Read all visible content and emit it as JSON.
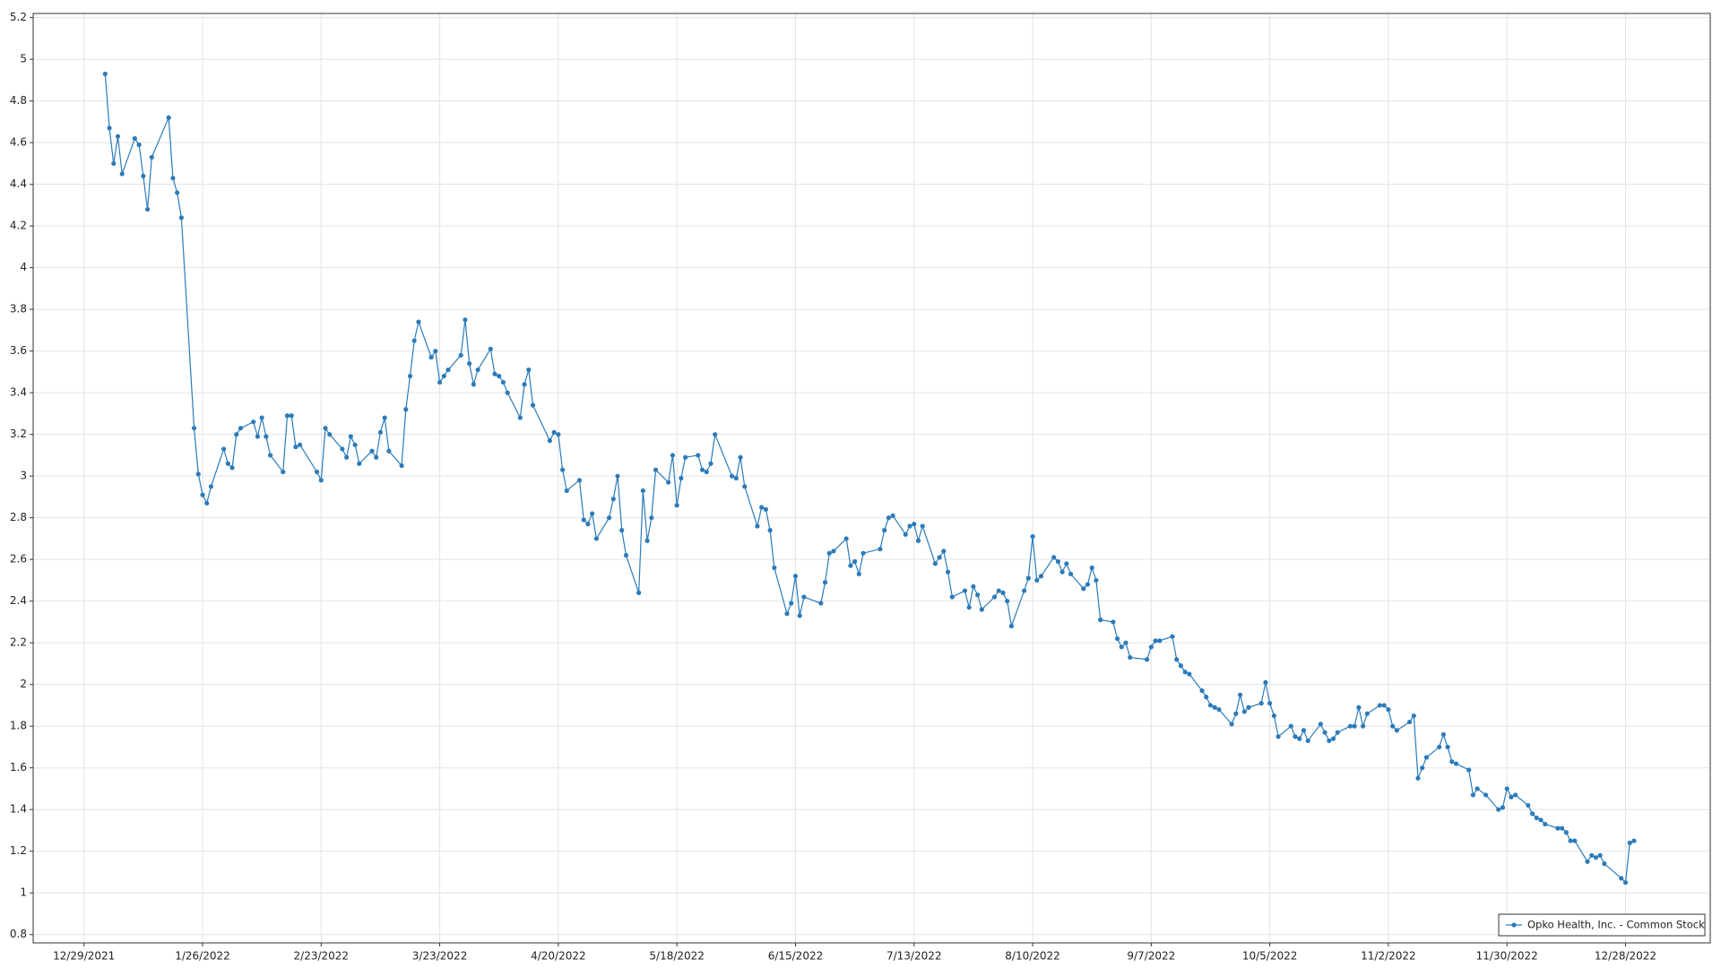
{
  "chart_data": {
    "type": "line",
    "x": [
      "2022-01-03",
      "2022-01-04",
      "2022-01-05",
      "2022-01-06",
      "2022-01-07",
      "2022-01-10",
      "2022-01-11",
      "2022-01-12",
      "2022-01-13",
      "2022-01-14",
      "2022-01-18",
      "2022-01-19",
      "2022-01-20",
      "2022-01-21",
      "2022-01-24",
      "2022-01-25",
      "2022-01-26",
      "2022-01-27",
      "2022-01-28",
      "2022-01-31",
      "2022-02-01",
      "2022-02-02",
      "2022-02-03",
      "2022-02-04",
      "2022-02-07",
      "2022-02-08",
      "2022-02-09",
      "2022-02-10",
      "2022-02-11",
      "2022-02-14",
      "2022-02-15",
      "2022-02-16",
      "2022-02-17",
      "2022-02-18",
      "2022-02-22",
      "2022-02-23",
      "2022-02-24",
      "2022-02-25",
      "2022-02-28",
      "2022-03-01",
      "2022-03-02",
      "2022-03-03",
      "2022-03-04",
      "2022-03-07",
      "2022-03-08",
      "2022-03-09",
      "2022-03-10",
      "2022-03-11",
      "2022-03-14",
      "2022-03-15",
      "2022-03-16",
      "2022-03-17",
      "2022-03-18",
      "2022-03-21",
      "2022-03-22",
      "2022-03-23",
      "2022-03-24",
      "2022-03-25",
      "2022-03-28",
      "2022-03-29",
      "2022-03-30",
      "2022-03-31",
      "2022-04-01",
      "2022-04-04",
      "2022-04-05",
      "2022-04-06",
      "2022-04-07",
      "2022-04-08",
      "2022-04-11",
      "2022-04-12",
      "2022-04-13",
      "2022-04-14",
      "2022-04-18",
      "2022-04-19",
      "2022-04-20",
      "2022-04-21",
      "2022-04-22",
      "2022-04-25",
      "2022-04-26",
      "2022-04-27",
      "2022-04-28",
      "2022-04-29",
      "2022-05-02",
      "2022-05-03",
      "2022-05-04",
      "2022-05-05",
      "2022-05-06",
      "2022-05-09",
      "2022-05-10",
      "2022-05-11",
      "2022-05-12",
      "2022-05-13",
      "2022-05-16",
      "2022-05-17",
      "2022-05-18",
      "2022-05-19",
      "2022-05-20",
      "2022-05-23",
      "2022-05-24",
      "2022-05-25",
      "2022-05-26",
      "2022-05-27",
      "2022-05-31",
      "2022-06-01",
      "2022-06-02",
      "2022-06-03",
      "2022-06-06",
      "2022-06-07",
      "2022-06-08",
      "2022-06-09",
      "2022-06-10",
      "2022-06-13",
      "2022-06-14",
      "2022-06-15",
      "2022-06-16",
      "2022-06-17",
      "2022-06-21",
      "2022-06-22",
      "2022-06-23",
      "2022-06-24",
      "2022-06-27",
      "2022-06-28",
      "2022-06-29",
      "2022-06-30",
      "2022-07-01",
      "2022-07-05",
      "2022-07-06",
      "2022-07-07",
      "2022-07-08",
      "2022-07-11",
      "2022-07-12",
      "2022-07-13",
      "2022-07-14",
      "2022-07-15",
      "2022-07-18",
      "2022-07-19",
      "2022-07-20",
      "2022-07-21",
      "2022-07-22",
      "2022-07-25",
      "2022-07-26",
      "2022-07-27",
      "2022-07-28",
      "2022-07-29",
      "2022-08-01",
      "2022-08-02",
      "2022-08-03",
      "2022-08-04",
      "2022-08-05",
      "2022-08-08",
      "2022-08-09",
      "2022-08-10",
      "2022-08-11",
      "2022-08-12",
      "2022-08-15",
      "2022-08-16",
      "2022-08-17",
      "2022-08-18",
      "2022-08-19",
      "2022-08-22",
      "2022-08-23",
      "2022-08-24",
      "2022-08-25",
      "2022-08-26",
      "2022-08-29",
      "2022-08-30",
      "2022-08-31",
      "2022-09-01",
      "2022-09-02",
      "2022-09-06",
      "2022-09-07",
      "2022-09-08",
      "2022-09-09",
      "2022-09-12",
      "2022-09-13",
      "2022-09-14",
      "2022-09-15",
      "2022-09-16",
      "2022-09-19",
      "2022-09-20",
      "2022-09-21",
      "2022-09-22",
      "2022-09-23",
      "2022-09-26",
      "2022-09-27",
      "2022-09-28",
      "2022-09-29",
      "2022-09-30",
      "2022-10-03",
      "2022-10-04",
      "2022-10-05",
      "2022-10-06",
      "2022-10-07",
      "2022-10-10",
      "2022-10-11",
      "2022-10-12",
      "2022-10-13",
      "2022-10-14",
      "2022-10-17",
      "2022-10-18",
      "2022-10-19",
      "2022-10-20",
      "2022-10-21",
      "2022-10-24",
      "2022-10-25",
      "2022-10-26",
      "2022-10-27",
      "2022-10-28",
      "2022-10-31",
      "2022-11-01",
      "2022-11-02",
      "2022-11-03",
      "2022-11-04",
      "2022-11-07",
      "2022-11-08",
      "2022-11-09",
      "2022-11-10",
      "2022-11-11",
      "2022-11-14",
      "2022-11-15",
      "2022-11-16",
      "2022-11-17",
      "2022-11-18",
      "2022-11-21",
      "2022-11-22",
      "2022-11-23",
      "2022-11-25",
      "2022-11-28",
      "2022-11-29",
      "2022-11-30",
      "2022-12-01",
      "2022-12-02",
      "2022-12-05",
      "2022-12-06",
      "2022-12-07",
      "2022-12-08",
      "2022-12-09",
      "2022-12-12",
      "2022-12-13",
      "2022-12-14",
      "2022-12-15",
      "2022-12-16",
      "2022-12-19",
      "2022-12-20",
      "2022-12-21",
      "2022-12-22",
      "2022-12-23",
      "2022-12-27",
      "2022-12-28",
      "2022-12-29",
      "2022-12-30"
    ],
    "series": [
      {
        "name": "Opko Health, Inc. - Common Stock",
        "color": "#2b7bba",
        "values": [
          4.93,
          4.67,
          4.5,
          4.63,
          4.45,
          4.62,
          4.59,
          4.44,
          4.28,
          4.53,
          4.72,
          4.43,
          4.36,
          4.24,
          3.23,
          3.01,
          2.91,
          2.87,
          2.95,
          3.13,
          3.06,
          3.04,
          3.2,
          3.23,
          3.26,
          3.19,
          3.28,
          3.19,
          3.1,
          3.02,
          3.29,
          3.29,
          3.14,
          3.15,
          3.02,
          2.98,
          3.23,
          3.2,
          3.13,
          3.09,
          3.19,
          3.15,
          3.06,
          3.12,
          3.09,
          3.21,
          3.28,
          3.12,
          3.05,
          3.32,
          3.48,
          3.65,
          3.74,
          3.57,
          3.6,
          3.45,
          3.48,
          3.51,
          3.58,
          3.75,
          3.54,
          3.44,
          3.51,
          3.61,
          3.49,
          3.48,
          3.45,
          3.4,
          3.28,
          3.44,
          3.51,
          3.34,
          3.17,
          3.21,
          3.2,
          3.03,
          2.93,
          2.98,
          2.79,
          2.77,
          2.82,
          2.7,
          2.8,
          2.89,
          3.0,
          2.74,
          2.62,
          2.44,
          2.93,
          2.69,
          2.8,
          3.03,
          2.97,
          3.1,
          2.86,
          2.99,
          3.09,
          3.1,
          3.03,
          3.02,
          3.06,
          3.2,
          3.0,
          2.99,
          3.09,
          2.95,
          2.76,
          2.85,
          2.84,
          2.74,
          2.56,
          2.34,
          2.39,
          2.52,
          2.33,
          2.42,
          2.39,
          2.49,
          2.63,
          2.64,
          2.7,
          2.57,
          2.59,
          2.53,
          2.63,
          2.65,
          2.74,
          2.8,
          2.81,
          2.72,
          2.76,
          2.77,
          2.69,
          2.76,
          2.58,
          2.61,
          2.64,
          2.54,
          2.42,
          2.45,
          2.37,
          2.47,
          2.43,
          2.36,
          2.42,
          2.45,
          2.44,
          2.4,
          2.28,
          2.45,
          2.51,
          2.71,
          2.5,
          2.52,
          2.61,
          2.59,
          2.54,
          2.58,
          2.53,
          2.46,
          2.48,
          2.56,
          2.5,
          2.31,
          2.3,
          2.22,
          2.18,
          2.2,
          2.13,
          2.12,
          2.18,
          2.21,
          2.21,
          2.23,
          2.12,
          2.09,
          2.06,
          2.05,
          1.97,
          1.94,
          1.9,
          1.89,
          1.88,
          1.81,
          1.86,
          1.95,
          1.87,
          1.89,
          1.91,
          2.01,
          1.91,
          1.85,
          1.75,
          1.8,
          1.75,
          1.74,
          1.78,
          1.73,
          1.81,
          1.77,
          1.73,
          1.74,
          1.77,
          1.8,
          1.8,
          1.89,
          1.8,
          1.86,
          1.9,
          1.9,
          1.88,
          1.8,
          1.78,
          1.82,
          1.85,
          1.55,
          1.6,
          1.65,
          1.7,
          1.76,
          1.7,
          1.63,
          1.62,
          1.59,
          1.47,
          1.5,
          1.47,
          1.4,
          1.41,
          1.5,
          1.46,
          1.47,
          1.42,
          1.38,
          1.36,
          1.35,
          1.33,
          1.31,
          1.31,
          1.29,
          1.25,
          1.25,
          1.15,
          1.18,
          1.17,
          1.18,
          1.14,
          1.07,
          1.05,
          1.24,
          1.25
        ]
      }
    ],
    "xlim": [
      "2021-12-17",
      "2023-01-17"
    ],
    "xticks": [
      {
        "value": "2021-12-29",
        "label": "12/29/2021"
      },
      {
        "value": "2022-01-26",
        "label": "1/26/2022"
      },
      {
        "value": "2022-02-23",
        "label": "2/23/2022"
      },
      {
        "value": "2022-03-23",
        "label": "3/23/2022"
      },
      {
        "value": "2022-04-20",
        "label": "4/20/2022"
      },
      {
        "value": "2022-05-18",
        "label": "5/18/2022"
      },
      {
        "value": "2022-06-15",
        "label": "6/15/2022"
      },
      {
        "value": "2022-07-13",
        "label": "7/13/2022"
      },
      {
        "value": "2022-08-10",
        "label": "8/10/2022"
      },
      {
        "value": "2022-09-07",
        "label": "9/7/2022"
      },
      {
        "value": "2022-10-05",
        "label": "10/5/2022"
      },
      {
        "value": "2022-11-02",
        "label": "11/2/2022"
      },
      {
        "value": "2022-11-30",
        "label": "11/30/2022"
      },
      {
        "value": "2022-12-28",
        "label": "12/28/2022"
      }
    ],
    "ylim": [
      0.76,
      5.22
    ],
    "yticks": [
      0.8,
      1,
      1.2,
      1.4,
      1.6,
      1.8,
      2,
      2.2,
      2.4,
      2.6,
      2.8,
      3,
      3.2,
      3.4,
      3.6,
      3.8,
      4,
      4.2,
      4.4,
      4.6,
      4.8,
      5,
      5.2
    ],
    "grid": true,
    "legend": "lower right",
    "markers": true
  }
}
